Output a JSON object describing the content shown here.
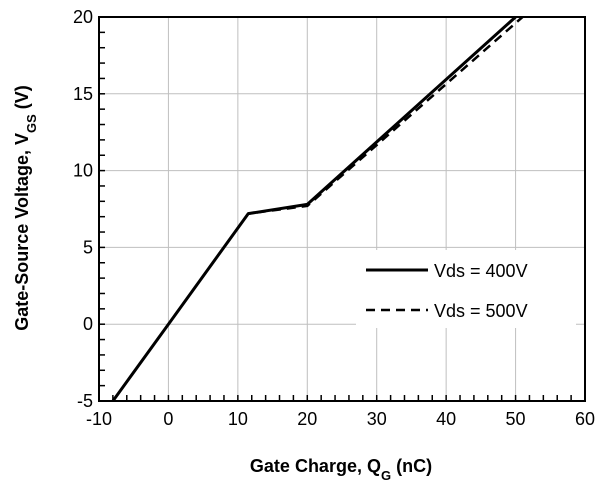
{
  "chart_data": {
    "type": "line",
    "xlabel": {
      "main": "Gate Charge, Q",
      "sub": "G",
      "unit": " (nC)"
    },
    "ylabel": {
      "main": "Gate-Source Voltage, V",
      "sub": "GS",
      "unit": " (V)"
    },
    "xlim": [
      -10,
      60
    ],
    "ylim": [
      -5,
      20
    ],
    "x_ticks": [
      -10,
      0,
      10,
      20,
      30,
      40,
      50,
      60
    ],
    "y_ticks": [
      -5,
      0,
      5,
      10,
      15,
      20
    ],
    "x_tick_labels": [
      "-10",
      "0",
      "10",
      "20",
      "30",
      "40",
      "50",
      "60"
    ],
    "y_tick_labels": [
      "-5",
      "0",
      "5",
      "10",
      "15",
      "20"
    ],
    "grid": true,
    "legend_position": "bottom-right",
    "series": [
      {
        "name": "Vds = 400V",
        "style": "solid",
        "color": "#000000",
        "points": [
          [
            -8,
            -5
          ],
          [
            0,
            0
          ],
          [
            11.5,
            7.2
          ],
          [
            20,
            7.8
          ],
          [
            50,
            20
          ]
        ]
      },
      {
        "name": "Vds = 500V",
        "style": "dashed",
        "color": "#000000",
        "points": [
          [
            -8,
            -5
          ],
          [
            0,
            0
          ],
          [
            11.5,
            7.2
          ],
          [
            20,
            7.7
          ],
          [
            51,
            20
          ]
        ]
      }
    ]
  }
}
